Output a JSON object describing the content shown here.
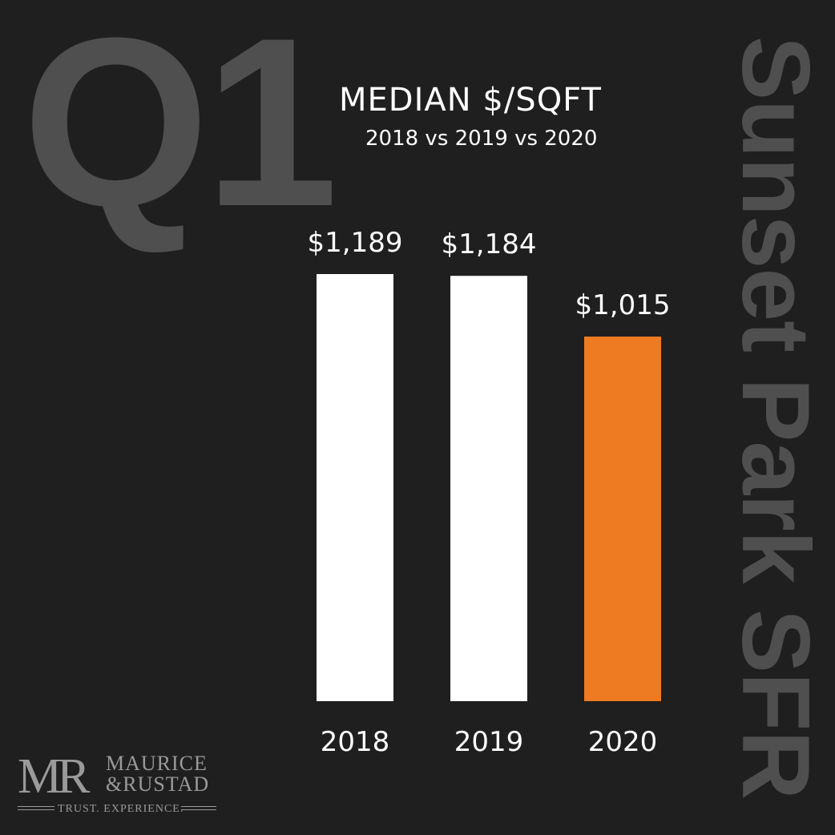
{
  "corner_label": "Q1",
  "side_label": "Sunset Park SFR",
  "chart_data": {
    "type": "bar",
    "title": "MEDIAN $/SQFT",
    "subtitle": "2018 vs 2019 vs 2020",
    "categories": [
      "2018",
      "2019",
      "2020"
    ],
    "values": [
      1189,
      1184,
      1015
    ],
    "value_labels": [
      "$1,189",
      "$1,184",
      "$1,015"
    ],
    "bar_colors": [
      "#ffffff",
      "#ffffff",
      "#ee7a22"
    ],
    "xlabel": "",
    "ylabel": "",
    "ylim": [
      0,
      1189
    ],
    "grid": false,
    "legend": "none"
  },
  "logo": {
    "mark": "MR",
    "name_line1": "MAURICE",
    "name_line2": "&RUSTAD",
    "tagline": "TRUST. EXPERIENCE."
  },
  "colors": {
    "background": "#1f1f1f",
    "watermark_text": "#4f4f4f",
    "text": "#ffffff",
    "accent": "#ee7a22",
    "logo": "#9a9a9a"
  }
}
